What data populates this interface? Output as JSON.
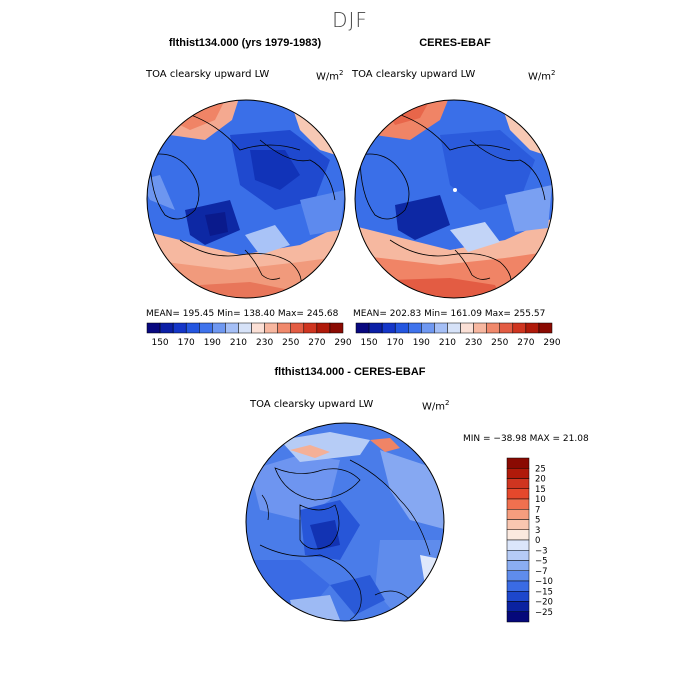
{
  "figure": {
    "season": "DJF"
  },
  "panels": [
    {
      "title": "flthist134.000 (yrs 1979-1983)",
      "variable": "TOA clearsky upward LW",
      "units": "W/m",
      "units_exp": "2",
      "stats": "MEAN= 195.45   Min= 138.40   Max= 245.68",
      "colors": {
        "accent": "#1f4fd6"
      }
    },
    {
      "title": "CERES-EBAF",
      "variable": "TOA clearsky upward LW",
      "units": "W/m",
      "units_exp": "2",
      "stats": "MEAN= 202.83   Min= 161.09   Max= 255.57",
      "colors": {
        "accent": "#2b63e0"
      }
    }
  ],
  "abs_colorbar": {
    "labels": [
      "150",
      "170",
      "190",
      "210",
      "230",
      "250",
      "270",
      "290"
    ],
    "colors": [
      "#08087f",
      "#0b1fa6",
      "#1436c8",
      "#2456e0",
      "#3f73ec",
      "#6f98f1",
      "#a5bff6",
      "#d6e2f8",
      "#fbe0d6",
      "#f7b7a0",
      "#f0896c",
      "#e35c43",
      "#cf3520",
      "#b01a0a",
      "#8a0a02"
    ]
  },
  "diff": {
    "title": "flthist134.000 - CERES-EBAF",
    "variable": "TOA clearsky upward LW",
    "units": "W/m",
    "units_exp": "2",
    "minmax": "MIN = −38.98 MAX =  21.08",
    "colorbar_labels": [
      "25",
      "20",
      "15",
      "10",
      "7",
      "5",
      "3",
      "0",
      "−3",
      "−5",
      "−7",
      "−10",
      "−15",
      "−20",
      "−25"
    ],
    "colorbar_colors": [
      "#8a0a02",
      "#b01a0a",
      "#cf3520",
      "#e5482c",
      "#f0704f",
      "#f69d7e",
      "#f9c6b0",
      "#fbe9df",
      "#dbe6fb",
      "#b5cbf6",
      "#8aadf2",
      "#5f8cec",
      "#3a6be4",
      "#1d47cc",
      "#0a22a0",
      "#05087a"
    ]
  }
}
